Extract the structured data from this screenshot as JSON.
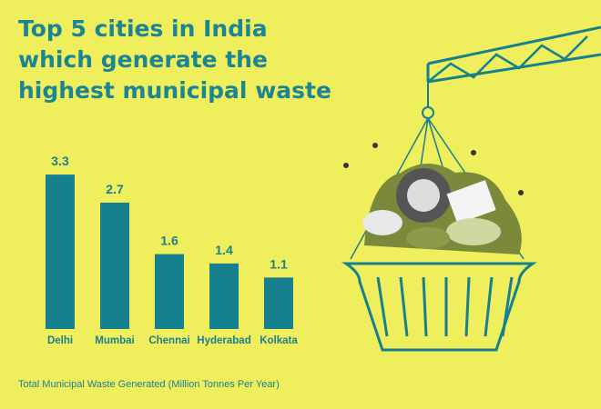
{
  "chart_data": {
    "type": "bar",
    "title": [
      "Top 5 cities in India",
      "which generate the",
      "highest municipal waste"
    ],
    "categories": [
      "Delhi",
      "Mumbai",
      "Chennai",
      "Hyderabad",
      "Kolkata"
    ],
    "values": [
      3.3,
      2.7,
      1.6,
      1.4,
      1.1
    ],
    "color": "#17808f",
    "footnote": "Total Municipal Waste Generated (Million Tonnes Per Year)"
  }
}
